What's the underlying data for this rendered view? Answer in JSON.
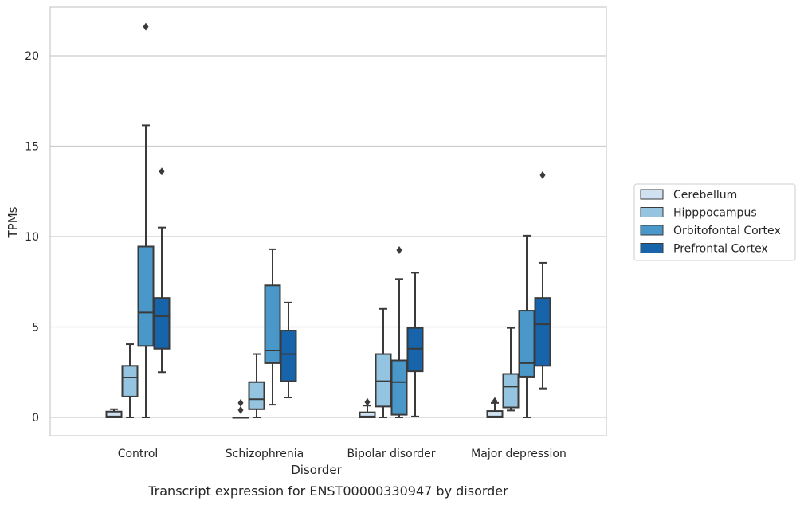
{
  "chart_data": {
    "type": "box",
    "caption": "Transcript expression for ENST00000330947 by disorder",
    "xlabel": "Disorder",
    "ylabel": "TPMs",
    "ylim": [
      -1.05,
      22.6
    ],
    "yticks": [
      0,
      5,
      10,
      15,
      20
    ],
    "grid": "horizontal",
    "legend_position": "right",
    "categories": [
      "Control",
      "Schizophrenia",
      "Bipolar disorder",
      "Major depression"
    ],
    "series": [
      {
        "name": "Cerebellum",
        "color": "#d0e1f2",
        "boxes": [
          {
            "whislo": 0.0,
            "q1": 0.0,
            "med": 0.05,
            "q3": 0.32,
            "whishi": 0.45,
            "fliers": []
          },
          {
            "whislo": 0.0,
            "q1": 0.0,
            "med": 0.0,
            "q3": 0.0,
            "whishi": 0.0,
            "fliers": [
              0.4,
              0.8
            ]
          },
          {
            "whislo": 0.0,
            "q1": 0.0,
            "med": 0.05,
            "q3": 0.28,
            "whishi": 0.65,
            "fliers": [
              0.85
            ]
          },
          {
            "whislo": 0.0,
            "q1": 0.0,
            "med": 0.05,
            "q3": 0.35,
            "whishi": 0.8,
            "fliers": [
              0.9
            ]
          }
        ]
      },
      {
        "name": "Hipppocampus",
        "color": "#94c4df",
        "boxes": [
          {
            "whislo": 0.0,
            "q1": 1.15,
            "med": 2.2,
            "q3": 2.85,
            "whishi": 4.05,
            "fliers": []
          },
          {
            "whislo": 0.0,
            "q1": 0.45,
            "med": 1.0,
            "q3": 1.95,
            "whishi": 3.5,
            "fliers": []
          },
          {
            "whislo": 0.0,
            "q1": 0.6,
            "med": 2.0,
            "q3": 3.5,
            "whishi": 6.0,
            "fliers": []
          },
          {
            "whislo": 0.38,
            "q1": 0.55,
            "med": 1.7,
            "q3": 2.4,
            "whishi": 4.95,
            "fliers": []
          }
        ]
      },
      {
        "name": "Orbitofontal Cortex",
        "color": "#4a98c9",
        "boxes": [
          {
            "whislo": 0.0,
            "q1": 3.95,
            "med": 5.8,
            "q3": 9.45,
            "whishi": 16.15,
            "fliers": [
              21.6
            ]
          },
          {
            "whislo": 0.7,
            "q1": 3.0,
            "med": 3.7,
            "q3": 7.3,
            "whishi": 9.3,
            "fliers": []
          },
          {
            "whislo": 0.0,
            "q1": 0.15,
            "med": 1.95,
            "q3": 3.15,
            "whishi": 7.65,
            "fliers": [
              9.25
            ]
          },
          {
            "whislo": 0.0,
            "q1": 2.25,
            "med": 3.0,
            "q3": 5.9,
            "whishi": 10.05,
            "fliers": []
          }
        ]
      },
      {
        "name": "Prefrontal Cortex",
        "color": "#1764ab",
        "boxes": [
          {
            "whislo": 2.5,
            "q1": 3.8,
            "med": 5.6,
            "q3": 6.6,
            "whishi": 10.5,
            "fliers": [
              13.6
            ]
          },
          {
            "whislo": 1.1,
            "q1": 2.0,
            "med": 3.5,
            "q3": 4.8,
            "whishi": 6.35,
            "fliers": []
          },
          {
            "whislo": 0.05,
            "q1": 2.55,
            "med": 3.8,
            "q3": 4.95,
            "whishi": 8.0,
            "fliers": []
          },
          {
            "whislo": 1.6,
            "q1": 2.85,
            "med": 5.15,
            "q3": 6.6,
            "whishi": 8.55,
            "fliers": [
              13.4
            ]
          }
        ]
      }
    ]
  }
}
